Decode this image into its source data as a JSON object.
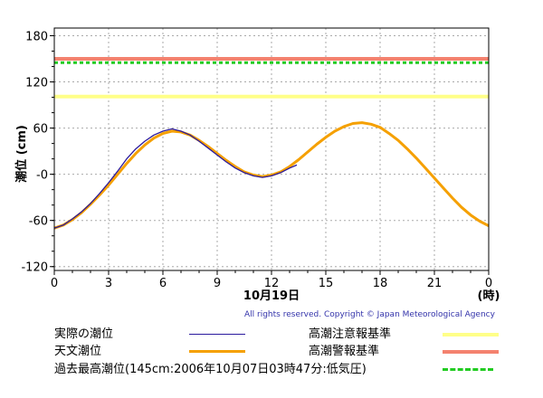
{
  "chart_data": {
    "type": "line",
    "ylabel": "潮位 (cm)",
    "xlabel_date": "10月19日",
    "xlabel_unit": "(時)",
    "x_ticks": [
      "0",
      "3",
      "6",
      "9",
      "12",
      "15",
      "18",
      "21",
      "0"
    ],
    "y_ticks": [
      "180",
      "120",
      "60",
      "-0",
      "-60",
      "-120"
    ],
    "xlim": [
      0,
      24
    ],
    "ylim": [
      -125,
      190
    ],
    "grid": true,
    "series": [
      {
        "name": "実際の潮位",
        "color": "#2b1a9e",
        "x": [
          0,
          0.5,
          1,
          1.5,
          2,
          2.5,
          3,
          3.5,
          4,
          4.5,
          5,
          5.5,
          6,
          6.5,
          7,
          7.5,
          8,
          8.5,
          9,
          9.5,
          10,
          10.5,
          11,
          11.5,
          12,
          12.5,
          13,
          13.4
        ],
        "y": [
          -70,
          -66,
          -58,
          -49,
          -38,
          -25,
          -11,
          4,
          20,
          33,
          43,
          51,
          56,
          59,
          56,
          51,
          43,
          34,
          25,
          16,
          8,
          2,
          -2,
          -4,
          -2,
          2,
          8,
          12
        ]
      },
      {
        "name": "天文潮位",
        "color": "#f5a000",
        "x": [
          0,
          0.5,
          1,
          1.5,
          2,
          2.5,
          3,
          3.5,
          4,
          4.5,
          5,
          5.5,
          6,
          6.5,
          7,
          7.5,
          8,
          8.5,
          9,
          9.5,
          10,
          10.5,
          11,
          11.5,
          12,
          12.5,
          13,
          13.5,
          14,
          14.5,
          15,
          15.5,
          16,
          16.5,
          17,
          17.5,
          18,
          18.5,
          19,
          19.5,
          20,
          20.5,
          21,
          21.5,
          22,
          22.5,
          23,
          23.5,
          24
        ],
        "y": [
          -70,
          -66,
          -59,
          -50,
          -39,
          -27,
          -14,
          0,
          14,
          27,
          38,
          47,
          53,
          56,
          55,
          51,
          44,
          36,
          27,
          18,
          10,
          3,
          -1,
          -3,
          -1,
          3,
          10,
          19,
          29,
          39,
          48,
          56,
          62,
          66,
          67,
          65,
          61,
          53,
          44,
          33,
          21,
          8,
          -5,
          -18,
          -31,
          -43,
          -53,
          -61,
          -67
        ]
      }
    ],
    "reference_lines": [
      {
        "name": "高潮注意報基準",
        "value": 101,
        "color": "#ffff88",
        "style": "solid"
      },
      {
        "name": "高潮警報基準",
        "value": 150,
        "color": "#f4826f",
        "style": "solid"
      },
      {
        "name": "過去最高潮位(145cm:2006年10月07日03時47分:低気圧)",
        "value": 145,
        "color": "#22cc22",
        "style": "dotted"
      }
    ]
  },
  "copyright": "All rights reserved. Copyright © Japan Meteorological Agency",
  "legend": [
    {
      "label": "実際の潮位",
      "color": "#2b1a9e",
      "style": "solid",
      "weight": 1
    },
    {
      "label": "天文潮位",
      "color": "#f5a000",
      "style": "solid",
      "weight": 3
    },
    {
      "label": "高潮注意報基準",
      "color": "#ffff88",
      "style": "solid",
      "weight": 4
    },
    {
      "label": "高潮警報基準",
      "color": "#f4826f",
      "style": "solid",
      "weight": 4
    },
    {
      "label": "過去最高潮位(145cm:2006年10月07日03時47分:低気圧)",
      "color": "#22cc22",
      "style": "dotted",
      "weight": 3
    }
  ]
}
